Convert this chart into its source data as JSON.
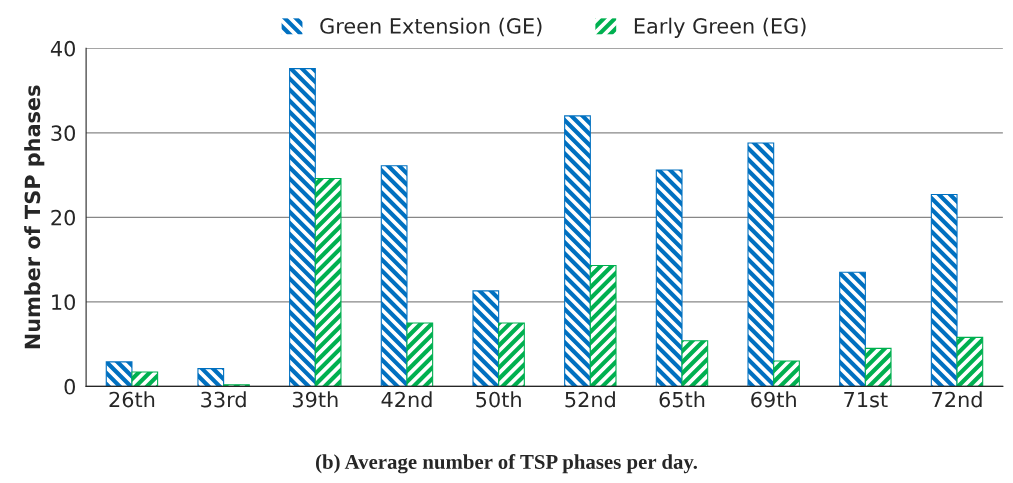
{
  "chart_data": {
    "type": "bar",
    "title": "(b) Average number of TSP phases per day.",
    "ylabel": "Number of TSP phases",
    "categories": [
      "26th",
      "33rd",
      "39th",
      "42nd",
      "50th",
      "52nd",
      "65th",
      "69th",
      "71st",
      "72nd"
    ],
    "series": [
      {
        "name": "Green Extension (GE)",
        "color": "#0070c0",
        "values": [
          2.9,
          2.1,
          37.6,
          26.1,
          11.3,
          32.0,
          25.6,
          28.8,
          13.5,
          22.7
        ]
      },
      {
        "name": "Early Green (EG)",
        "color": "#00b050",
        "values": [
          1.7,
          0.2,
          24.6,
          7.5,
          7.5,
          14.3,
          5.4,
          3.0,
          4.5,
          5.8
        ]
      }
    ],
    "ylim": [
      0,
      40
    ],
    "yticks": [
      0,
      10,
      20,
      30,
      40
    ],
    "grid": "y",
    "legend": "top"
  }
}
